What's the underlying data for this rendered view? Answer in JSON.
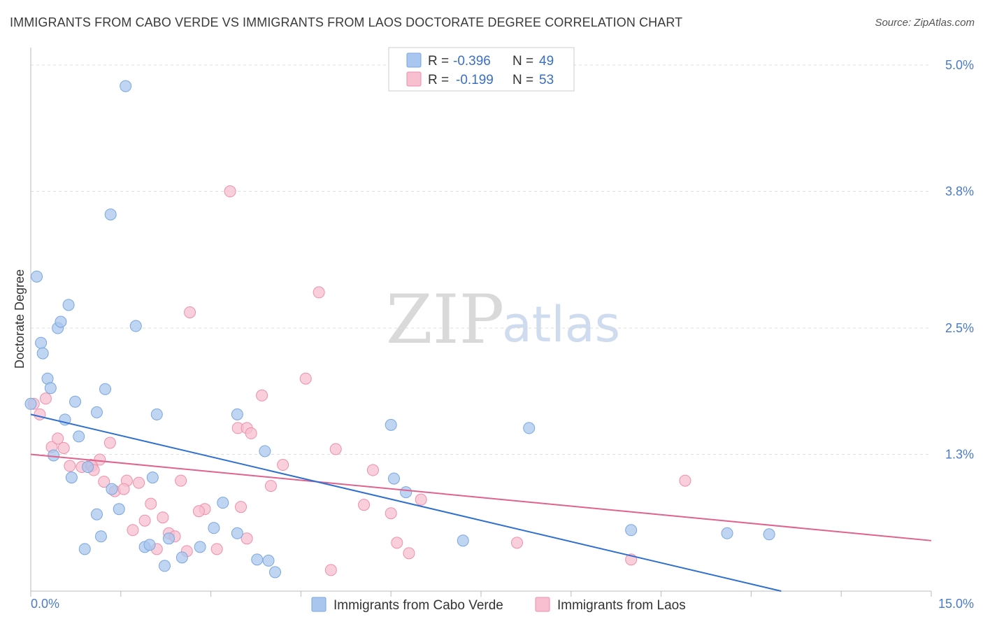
{
  "title": "IMMIGRANTS FROM CABO VERDE VS IMMIGRANTS FROM LAOS DOCTORATE DEGREE CORRELATION CHART",
  "source": "Source: ZipAtlas.com",
  "watermark": {
    "zip": "ZIP",
    "atlas": "atlas"
  },
  "colors": {
    "blue_fill": "#a9c7ee",
    "blue_stroke": "#7aa6e0",
    "blue_line": "#2f6fd0",
    "pink_fill": "#f7bfd0",
    "pink_stroke": "#ee8fab",
    "pink_line": "#e0628d",
    "axis_text": "#4a7bc8",
    "grid": "#dddddd"
  },
  "legend": {
    "series": [
      {
        "r_label": "R =",
        "r_value": "-0.396",
        "n_label": "N =",
        "n_value": "49"
      },
      {
        "r_label": "R =",
        "r_value": "-0.199",
        "n_label": "N =",
        "n_value": "53"
      }
    ]
  },
  "chart_data": {
    "type": "scatter",
    "title": "IMMIGRANTS FROM CABO VERDE VS IMMIGRANTS FROM LAOS DOCTORATE DEGREE CORRELATION CHART",
    "xlabel": "",
    "ylabel": "Doctorate Degree",
    "xlim": [
      0,
      15
    ],
    "ylim": [
      0,
      5.1
    ],
    "x_tick_labels": [
      "0.0%",
      "15.0%"
    ],
    "y_ticks": [
      5.0,
      3.8,
      2.5,
      1.3
    ],
    "y_tick_labels": [
      "5.0%",
      "3.8%",
      "2.5%",
      "1.3%"
    ],
    "grid": true,
    "legend_position": "top-center",
    "series": [
      {
        "name": "Immigrants from Cabo Verde",
        "trend": {
          "x": [
            0.0,
            12.5
          ],
          "y": [
            1.68,
            0.0
          ]
        },
        "points": [
          [
            0.0,
            1.78
          ],
          [
            0.1,
            2.99
          ],
          [
            0.17,
            2.36
          ],
          [
            0.2,
            2.26
          ],
          [
            0.28,
            2.02
          ],
          [
            0.33,
            1.93
          ],
          [
            0.45,
            2.5
          ],
          [
            0.5,
            2.56
          ],
          [
            0.63,
            2.72
          ],
          [
            1.58,
            4.8
          ],
          [
            1.33,
            3.58
          ],
          [
            1.75,
            2.52
          ],
          [
            0.57,
            1.63
          ],
          [
            0.74,
            1.8
          ],
          [
            0.8,
            1.47
          ],
          [
            1.1,
            1.7
          ],
          [
            1.24,
            1.92
          ],
          [
            2.1,
            1.68
          ],
          [
            3.44,
            1.68
          ],
          [
            6.0,
            1.58
          ],
          [
            8.3,
            1.55
          ],
          [
            0.38,
            1.29
          ],
          [
            0.68,
            1.08
          ],
          [
            0.95,
            1.18
          ],
          [
            1.35,
            0.97
          ],
          [
            2.03,
            1.08
          ],
          [
            1.1,
            0.73
          ],
          [
            1.47,
            0.78
          ],
          [
            3.2,
            0.84
          ],
          [
            3.9,
            1.33
          ],
          [
            6.05,
            1.07
          ],
          [
            6.25,
            0.94
          ],
          [
            1.17,
            0.52
          ],
          [
            2.3,
            0.5
          ],
          [
            3.05,
            0.6
          ],
          [
            3.44,
            0.55
          ],
          [
            0.9,
            0.4
          ],
          [
            1.9,
            0.42
          ],
          [
            1.98,
            0.44
          ],
          [
            2.82,
            0.42
          ],
          [
            2.52,
            0.32
          ],
          [
            3.77,
            0.3
          ],
          [
            3.96,
            0.29
          ],
          [
            2.23,
            0.24
          ],
          [
            4.07,
            0.18
          ],
          [
            7.2,
            0.48
          ],
          [
            10.0,
            0.58
          ],
          [
            11.6,
            0.55
          ],
          [
            12.3,
            0.54
          ]
        ]
      },
      {
        "name": "Immigrants from Laos",
        "trend": {
          "x": [
            0.0,
            15.0
          ],
          "y": [
            1.3,
            0.48
          ]
        },
        "points": [
          [
            0.05,
            1.78
          ],
          [
            0.25,
            1.83
          ],
          [
            0.15,
            1.68
          ],
          [
            3.32,
            3.8
          ],
          [
            4.8,
            2.84
          ],
          [
            2.65,
            2.65
          ],
          [
            4.58,
            2.02
          ],
          [
            3.85,
            1.86
          ],
          [
            0.35,
            1.37
          ],
          [
            0.45,
            1.45
          ],
          [
            0.55,
            1.36
          ],
          [
            1.32,
            1.41
          ],
          [
            3.45,
            1.55
          ],
          [
            3.6,
            1.55
          ],
          [
            3.67,
            1.5
          ],
          [
            5.08,
            1.35
          ],
          [
            1.15,
            1.25
          ],
          [
            0.65,
            1.19
          ],
          [
            0.85,
            1.18
          ],
          [
            1.0,
            1.2
          ],
          [
            1.02,
            1.19
          ],
          [
            1.05,
            1.15
          ],
          [
            1.22,
            1.04
          ],
          [
            1.6,
            1.05
          ],
          [
            1.8,
            1.03
          ],
          [
            2.5,
            1.05
          ],
          [
            4.2,
            1.2
          ],
          [
            5.7,
            1.15
          ],
          [
            10.9,
            1.05
          ],
          [
            4.0,
            1.0
          ],
          [
            1.4,
            0.95
          ],
          [
            1.55,
            0.97
          ],
          [
            2.0,
            0.83
          ],
          [
            2.9,
            0.78
          ],
          [
            3.5,
            0.8
          ],
          [
            2.2,
            0.7
          ],
          [
            1.9,
            0.67
          ],
          [
            2.8,
            0.76
          ],
          [
            5.55,
            0.82
          ],
          [
            6.0,
            0.74
          ],
          [
            6.5,
            0.87
          ],
          [
            1.7,
            0.58
          ],
          [
            2.3,
            0.55
          ],
          [
            2.4,
            0.52
          ],
          [
            3.6,
            0.5
          ],
          [
            2.1,
            0.4
          ],
          [
            2.6,
            0.38
          ],
          [
            3.1,
            0.4
          ],
          [
            6.1,
            0.46
          ],
          [
            6.3,
            0.36
          ],
          [
            8.1,
            0.46
          ],
          [
            10.0,
            0.3
          ],
          [
            5.0,
            0.2
          ]
        ]
      }
    ]
  }
}
